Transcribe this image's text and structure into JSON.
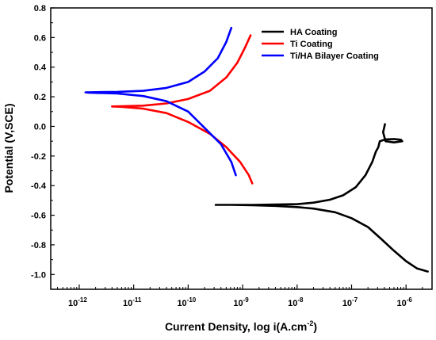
{
  "chart_data": {
    "type": "line",
    "title": "",
    "xlabel": "Current Density, log i(A.cm",
    "xlabel_sup": "-2",
    "xlabel_close": ")",
    "ylabel": "Potential (V,SCE)",
    "x_scale": "log",
    "xlim": [
      3e-13,
      3e-06
    ],
    "ylim": [
      -1.1,
      0.8
    ],
    "x_ticks": [
      {
        "value": 1e-12,
        "base": "10",
        "exp": "-12"
      },
      {
        "value": 1e-11,
        "base": "10",
        "exp": "-11"
      },
      {
        "value": 1e-10,
        "base": "10",
        "exp": "-10"
      },
      {
        "value": 1e-09,
        "base": "10",
        "exp": "-9"
      },
      {
        "value": 1e-08,
        "base": "10",
        "exp": "-8"
      },
      {
        "value": 1e-07,
        "base": "10",
        "exp": "-7"
      },
      {
        "value": 1e-06,
        "base": "10",
        "exp": "-6"
      }
    ],
    "y_ticks": [
      {
        "value": 0.8,
        "label": "0.8"
      },
      {
        "value": 0.6,
        "label": "0.6"
      },
      {
        "value": 0.4,
        "label": "0.4"
      },
      {
        "value": 0.2,
        "label": "0.2"
      },
      {
        "value": 0.0,
        "label": "0.0"
      },
      {
        "value": -0.2,
        "label": "-0.2"
      },
      {
        "value": -0.4,
        "label": "-0.4"
      },
      {
        "value": -0.6,
        "label": "-0.6"
      },
      {
        "value": -0.8,
        "label": "-0.8"
      },
      {
        "value": -1.0,
        "label": "-1.0"
      }
    ],
    "grid": false,
    "legend_position": "top-right",
    "series": [
      {
        "name": "HA Coating",
        "color": "#000000",
        "points": [
          [
            2.5e-06,
            -0.98
          ],
          [
            1.6e-06,
            -0.96
          ],
          [
            1e-06,
            -0.91
          ],
          [
            6e-07,
            -0.84
          ],
          [
            3.5e-07,
            -0.76
          ],
          [
            2e-07,
            -0.68
          ],
          [
            1e-07,
            -0.62
          ],
          [
            5e-08,
            -0.58
          ],
          [
            2e-08,
            -0.555
          ],
          [
            1e-08,
            -0.545
          ],
          [
            4e-09,
            -0.537
          ],
          [
            1.5e-09,
            -0.532
          ],
          [
            6e-10,
            -0.53
          ],
          [
            3.2e-10,
            -0.53
          ],
          [
            6e-10,
            -0.53
          ],
          [
            1.5e-09,
            -0.53
          ],
          [
            4e-09,
            -0.528
          ],
          [
            1e-08,
            -0.525
          ],
          [
            2e-08,
            -0.515
          ],
          [
            4e-08,
            -0.495
          ],
          [
            7e-08,
            -0.465
          ],
          [
            1.2e-07,
            -0.41
          ],
          [
            1.8e-07,
            -0.33
          ],
          [
            2.4e-07,
            -0.24
          ],
          [
            2.8e-07,
            -0.17
          ],
          [
            3.1e-07,
            -0.14
          ],
          [
            3.3e-07,
            -0.1
          ],
          [
            4.2e-07,
            -0.088
          ],
          [
            6e-07,
            -0.085
          ],
          [
            8e-07,
            -0.09
          ],
          [
            8.5e-07,
            -0.1
          ],
          [
            6e-07,
            -0.108
          ],
          [
            4.2e-07,
            -0.1
          ],
          [
            3.8e-07,
            -0.04
          ],
          [
            4.1e-07,
            0.015
          ]
        ]
      },
      {
        "name": "Ti Coating",
        "color": "#ff0000",
        "points": [
          [
            1.5e-09,
            -0.385
          ],
          [
            1.3e-09,
            -0.33
          ],
          [
            9e-10,
            -0.24
          ],
          [
            5e-10,
            -0.14
          ],
          [
            2.5e-10,
            -0.05
          ],
          [
            1e-10,
            0.03
          ],
          [
            4e-11,
            0.09
          ],
          [
            1.5e-11,
            0.12
          ],
          [
            6e-12,
            0.132
          ],
          [
            4e-12,
            0.135
          ],
          [
            6e-12,
            0.136
          ],
          [
            1.5e-11,
            0.14
          ],
          [
            4e-11,
            0.155
          ],
          [
            1e-10,
            0.185
          ],
          [
            2.5e-10,
            0.24
          ],
          [
            5e-10,
            0.33
          ],
          [
            8e-10,
            0.43
          ],
          [
            1.1e-09,
            0.53
          ],
          [
            1.4e-09,
            0.615
          ]
        ]
      },
      {
        "name": "Ti/HA Bilayer Coating",
        "color": "#0000ff",
        "points": [
          [
            7.5e-10,
            -0.33
          ],
          [
            6.2e-10,
            -0.24
          ],
          [
            4e-10,
            -0.12
          ],
          [
            2e-10,
            -0.01
          ],
          [
            1e-10,
            0.1
          ],
          [
            4e-11,
            0.17
          ],
          [
            1.5e-11,
            0.205
          ],
          [
            5e-12,
            0.222
          ],
          [
            1.5e-12,
            0.228
          ],
          [
            1.3e-12,
            0.23
          ],
          [
            5e-12,
            0.233
          ],
          [
            1.5e-11,
            0.24
          ],
          [
            4e-11,
            0.26
          ],
          [
            1e-10,
            0.3
          ],
          [
            2e-10,
            0.37
          ],
          [
            3.5e-10,
            0.46
          ],
          [
            5e-10,
            0.57
          ],
          [
            6.2e-10,
            0.665
          ]
        ]
      }
    ]
  }
}
